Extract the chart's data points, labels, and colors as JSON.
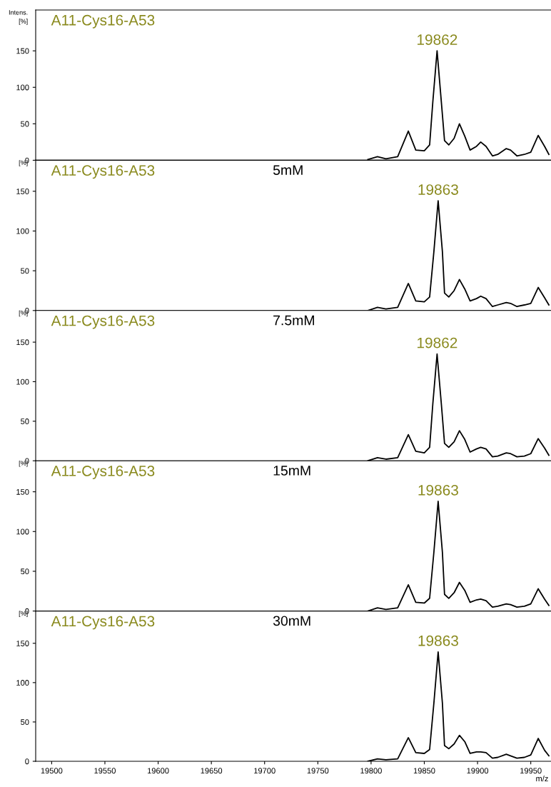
{
  "chart_data": [
    {
      "type": "line",
      "title": "A11-Cys16-A53",
      "ylabel": "Intens.\n[%]",
      "annotations": [
        "19862"
      ],
      "tick_labels": "y",
      "grid": false,
      "legend": false,
      "x": [
        19797,
        19806,
        19814,
        19825,
        19835,
        19842,
        19850,
        19855,
        19858,
        19862,
        19866,
        19869,
        19873,
        19878,
        19883,
        19888,
        19893,
        19899,
        19903,
        19908,
        19914,
        19919,
        19927,
        19931,
        19937,
        19944,
        19950,
        19957,
        19963,
        19967
      ],
      "series": [
        {
          "color": "#000000",
          "values": [
            1,
            5,
            2,
            5,
            40,
            14,
            13,
            21,
            80,
            150,
            80,
            27,
            21,
            30,
            50,
            33,
            14,
            19,
            25,
            19,
            6,
            8,
            16,
            14,
            6,
            8,
            11,
            34,
            19,
            8
          ]
        }
      ],
      "xlim": [
        19485,
        19969
      ],
      "ylim": [
        0,
        206
      ],
      "yticks": [
        0,
        50,
        100,
        150
      ]
    },
    {
      "type": "line",
      "title": "A11-Cys16-A53",
      "subtitle": "5mM",
      "ylabel": "[%]",
      "annotations": [
        "19863"
      ],
      "tick_labels": "y",
      "grid": false,
      "legend": false,
      "x": [
        19797,
        19806,
        19814,
        19825,
        19835,
        19842,
        19850,
        19855,
        19859,
        19863,
        19867,
        19869,
        19873,
        19878,
        19883,
        19888,
        19893,
        19899,
        19903,
        19908,
        19914,
        19919,
        19927,
        19931,
        19937,
        19944,
        19950,
        19957,
        19963,
        19967
      ],
      "series": [
        {
          "color": "#000000",
          "values": [
            0,
            4,
            2,
            4,
            34,
            12,
            11,
            17,
            74,
            138,
            74,
            22,
            17,
            25,
            39,
            27,
            12,
            15,
            18,
            15,
            5,
            7,
            10,
            9,
            5,
            7,
            9,
            29,
            16,
            7
          ]
        }
      ],
      "xlim": [
        19485,
        19969
      ],
      "ylim": [
        0,
        189
      ],
      "yticks": [
        0,
        50,
        100,
        150
      ]
    },
    {
      "type": "line",
      "title": "A11-Cys16-A53",
      "subtitle": "7.5mM",
      "ylabel": "[%]",
      "annotations": [
        "19862"
      ],
      "tick_labels": "y",
      "grid": false,
      "legend": false,
      "x": [
        19797,
        19806,
        19814,
        19825,
        19835,
        19842,
        19850,
        19855,
        19858,
        19862,
        19866,
        19869,
        19873,
        19878,
        19883,
        19888,
        19893,
        19899,
        19903,
        19908,
        19914,
        19919,
        19927,
        19931,
        19937,
        19944,
        19950,
        19957,
        19963,
        19967
      ],
      "series": [
        {
          "color": "#000000",
          "values": [
            0,
            4,
            2,
            4,
            33,
            12,
            10,
            17,
            72,
            135,
            72,
            22,
            17,
            24,
            38,
            27,
            11,
            15,
            17,
            15,
            5,
            6,
            10,
            9,
            5,
            6,
            9,
            28,
            16,
            7
          ]
        }
      ],
      "xlim": [
        19485,
        19969
      ],
      "ylim": [
        0,
        190
      ],
      "yticks": [
        0,
        50,
        100,
        150
      ]
    },
    {
      "type": "line",
      "title": "A11-Cys16-A53",
      "subtitle": "15mM",
      "ylabel": "[%]",
      "annotations": [
        "19863"
      ],
      "tick_labels": "y",
      "grid": false,
      "legend": false,
      "x": [
        19797,
        19806,
        19814,
        19825,
        19835,
        19842,
        19850,
        19855,
        19859,
        19863,
        19867,
        19869,
        19873,
        19878,
        19883,
        19888,
        19893,
        19899,
        19903,
        19908,
        19914,
        19919,
        19927,
        19931,
        19937,
        19944,
        19950,
        19957,
        19963,
        19967
      ],
      "series": [
        {
          "color": "#000000",
          "values": [
            0,
            4,
            2,
            4,
            33,
            11,
            10,
            16,
            74,
            138,
            74,
            21,
            16,
            23,
            36,
            26,
            11,
            14,
            15,
            13,
            5,
            6,
            9,
            8,
            5,
            6,
            9,
            28,
            15,
            7
          ]
        }
      ],
      "xlim": [
        19485,
        19969
      ],
      "ylim": [
        0,
        189
      ],
      "yticks": [
        0,
        50,
        100,
        150
      ]
    },
    {
      "type": "line",
      "title": "A11-Cys16-A53",
      "subtitle": "30mM",
      "ylabel": "[%]",
      "xlabel": "m/z",
      "annotations": [
        "19863"
      ],
      "grid": false,
      "legend": false,
      "x": [
        19797,
        19806,
        19814,
        19825,
        19835,
        19842,
        19850,
        19855,
        19859,
        19863,
        19867,
        19869,
        19873,
        19878,
        19883,
        19888,
        19893,
        19899,
        19903,
        19908,
        19914,
        19919,
        19927,
        19931,
        19937,
        19944,
        19950,
        19957,
        19963,
        19967
      ],
      "series": [
        {
          "color": "#000000",
          "values": [
            0,
            3,
            2,
            3,
            30,
            11,
            10,
            15,
            74,
            139,
            74,
            20,
            16,
            22,
            33,
            25,
            10,
            12,
            12,
            11,
            4,
            5,
            9,
            7,
            4,
            5,
            8,
            29,
            14,
            7
          ]
        }
      ],
      "xlim": [
        19485,
        19969
      ],
      "ylim": [
        0,
        191
      ],
      "yticks": [
        0,
        50,
        100,
        150
      ],
      "xticks": [
        19500,
        19550,
        19600,
        19650,
        19700,
        19750,
        19800,
        19850,
        19900,
        19950
      ]
    }
  ]
}
